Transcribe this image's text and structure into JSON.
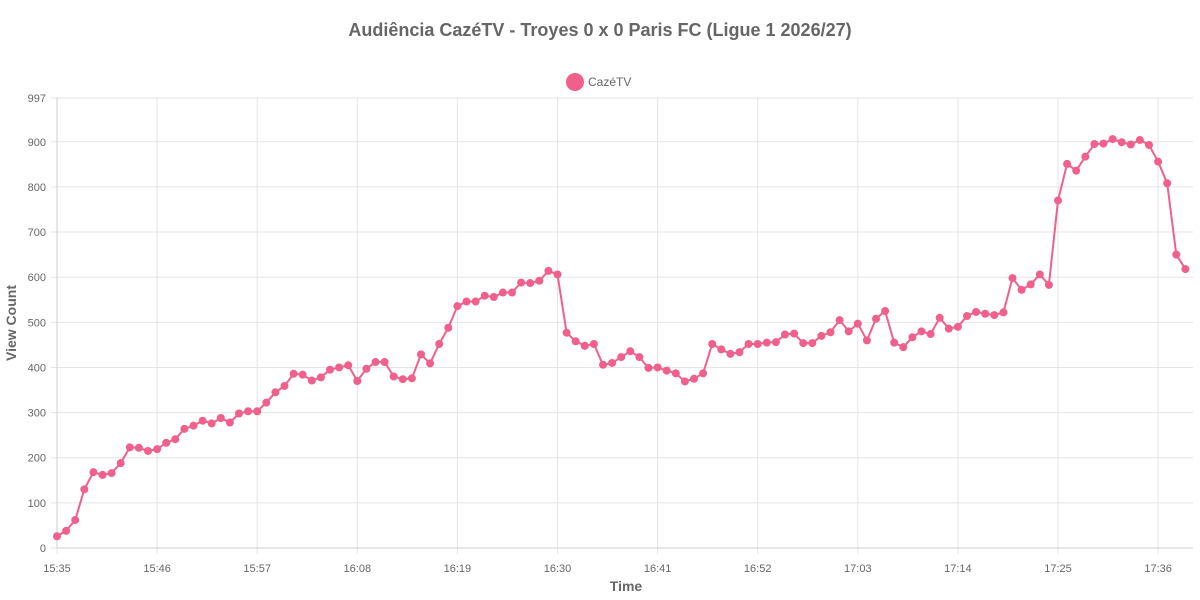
{
  "chart_data": {
    "type": "line",
    "title": "Audiência CazéTV - Troyes 0 x 0 Paris FC (Ligue 1 2026/27)",
    "xlabel": "Time",
    "ylabel": "View Count",
    "ylim": [
      0,
      997
    ],
    "y_ticks": [
      "0",
      "100",
      "200",
      "300",
      "400",
      "500",
      "600",
      "700",
      "800",
      "900",
      "997"
    ],
    "x_tick_labels": [
      "15:35",
      "15:46",
      "15:57",
      "16:08",
      "16:19",
      "16:30",
      "16:41",
      "16:52",
      "17:03",
      "17:14",
      "17:25",
      "17:36"
    ],
    "grid": true,
    "legend_position": "top",
    "x_axis_note": "one point per minute starting at 15:35",
    "series": [
      {
        "name": "CazéTV",
        "color": "#f0608a",
        "values": [
          26,
          38,
          62,
          130,
          168,
          162,
          166,
          188,
          223,
          222,
          215,
          219,
          233,
          241,
          264,
          271,
          282,
          276,
          288,
          278,
          298,
          303,
          303,
          322,
          345,
          359,
          386,
          384,
          371,
          378,
          395,
          400,
          405,
          370,
          397,
          412,
          412,
          380,
          374,
          376,
          429,
          409,
          452,
          488,
          536,
          546,
          546,
          559,
          556,
          566,
          566,
          588,
          587,
          592,
          614,
          606,
          477,
          458,
          448,
          452,
          406,
          410,
          423,
          436,
          423,
          399,
          400,
          393,
          387,
          369,
          375,
          387,
          452,
          440,
          430,
          434,
          452,
          452,
          455,
          456,
          473,
          475,
          454,
          454,
          470,
          478,
          505,
          480,
          497,
          460,
          508,
          525,
          455,
          445,
          467,
          480,
          474,
          510,
          486,
          490,
          514,
          523,
          519,
          516,
          522,
          598,
          572,
          584,
          606,
          583,
          770,
          851,
          836,
          867,
          895,
          896,
          906,
          899,
          894,
          904,
          893,
          856,
          808,
          650,
          618
        ]
      }
    ]
  }
}
